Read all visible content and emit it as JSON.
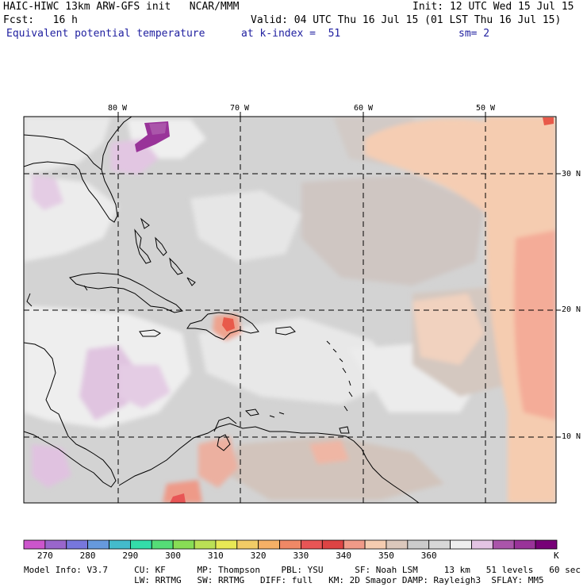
{
  "header": {
    "title_left": "HAIC-HIWC 13km ARW-GFS init   NCAR/MMM",
    "init": "Init: 12 UTC Wed 15 Jul 15",
    "fcst": "Fcst:   16 h",
    "valid": "Valid: 04 UTC Thu 16 Jul 15 (01 LST Thu 16 Jul 15)",
    "field_name": "Equivalent potential temperature",
    "level": "at k-index =  51",
    "smooth": "sm= 2"
  },
  "map": {
    "lon_labels": [
      "80 W",
      "70 W",
      "60 W",
      "50 W"
    ],
    "lat_labels": [
      "30 N",
      "20 N",
      "10 N"
    ]
  },
  "colorbar": {
    "colors": [
      "#cc55cc",
      "#9966cc",
      "#7777dd",
      "#6699dd",
      "#44bbcc",
      "#33ddaa",
      "#55dd77",
      "#88dd55",
      "#bbe055",
      "#e8e855",
      "#f2cc66",
      "#f5b066",
      "#f08866",
      "#e85555",
      "#dd4444",
      "#f09a88",
      "#f5ccb0",
      "#dcc8bc",
      "#cccccc",
      "#d8d8d8",
      "#eeeeee",
      "#e4c4e4",
      "#aa55aa",
      "#993399",
      "#770077"
    ],
    "labels": [
      "270",
      "280",
      "290",
      "300",
      "310",
      "320",
      "330",
      "340",
      "350",
      "360"
    ],
    "unit": "K"
  },
  "model_info": {
    "line1": "Model Info: V3.7     CU: KF      MP: Thompson    PBL: YSU      SF: Noah LSM     13 km   51 levels   60 sec",
    "line2": "                     LW: RRTMG   SW: RRTMG   DIFF: full   KM: 2D Smagor DAMP: Rayleigh3  SFLAY: MM5"
  }
}
